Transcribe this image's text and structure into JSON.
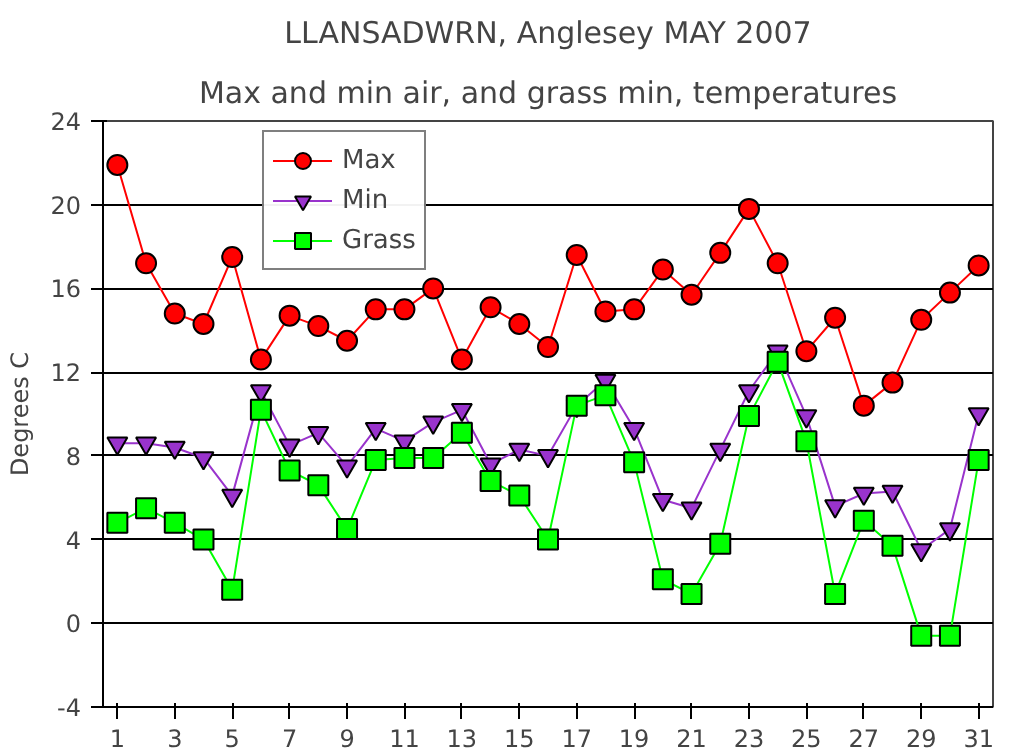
{
  "chart_data": {
    "type": "line",
    "title": "LLANSADWRN, Anglesey MAY 2007",
    "subtitle": "Max and min air, and grass min, temperatures",
    "ylabel": "Degrees C",
    "x": [
      1,
      2,
      3,
      4,
      5,
      6,
      7,
      8,
      9,
      10,
      11,
      12,
      13,
      14,
      15,
      16,
      17,
      18,
      19,
      20,
      21,
      22,
      23,
      24,
      25,
      26,
      27,
      28,
      29,
      30,
      31
    ],
    "series": [
      {
        "name": "Max",
        "color": "#ff0000",
        "marker": "circle",
        "values": [
          21.9,
          17.2,
          14.8,
          14.3,
          17.5,
          12.6,
          14.7,
          14.2,
          13.5,
          15.0,
          15.0,
          16.0,
          12.6,
          15.1,
          14.3,
          13.2,
          17.6,
          14.9,
          15.0,
          16.9,
          15.7,
          17.7,
          19.8,
          17.2,
          13.0,
          14.6,
          10.4,
          11.5,
          14.5,
          15.8,
          17.1
        ]
      },
      {
        "name": "Min",
        "color": "#9933cc",
        "marker": "triangle",
        "values": [
          8.6,
          8.6,
          8.4,
          7.9,
          6.1,
          11.1,
          8.5,
          9.1,
          7.5,
          9.3,
          8.7,
          9.6,
          10.2,
          7.6,
          8.3,
          8.0,
          10.4,
          11.6,
          9.3,
          5.9,
          5.5,
          8.3,
          11.1,
          13.0,
          9.9,
          5.6,
          6.2,
          6.3,
          3.5,
          4.5,
          10.0
        ]
      },
      {
        "name": "Grass",
        "color": "#00ff00",
        "marker": "square",
        "values": [
          4.8,
          5.5,
          4.8,
          4.0,
          1.6,
          10.2,
          7.3,
          6.6,
          4.5,
          7.8,
          7.9,
          7.9,
          9.1,
          6.8,
          6.1,
          4.0,
          10.4,
          10.9,
          7.7,
          2.1,
          1.4,
          3.8,
          9.9,
          12.5,
          8.7,
          1.4,
          4.9,
          3.7,
          -0.6,
          -0.6,
          7.8
        ]
      }
    ],
    "xlim": [
      0.5,
      31.5
    ],
    "xticks": [
      1,
      3,
      5,
      7,
      9,
      11,
      13,
      15,
      17,
      19,
      21,
      23,
      25,
      27,
      29,
      31
    ],
    "ylim": [
      -4,
      24
    ],
    "yticks": [
      -4,
      0,
      4,
      8,
      12,
      16,
      20,
      24
    ],
    "grid": "y",
    "legend": "top",
    "line_style": "solid"
  }
}
